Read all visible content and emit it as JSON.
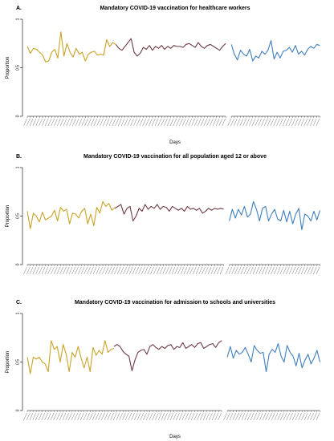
{
  "chart_data": [
    {
      "type": "line",
      "panel_label": "A.",
      "title": "Mandatory COVID-19 vaccination for healthcare workers",
      "xlabel": "Days",
      "ylabel": "Proportion",
      "ylim": [
        0,
        1
      ],
      "yticks": [
        "0",
        "0.5",
        "1"
      ],
      "grid": false,
      "colors": {
        "phase1": "#C9A227",
        "phase2": "#6E3B45",
        "phase3": "#3F7FBF"
      },
      "series": [
        {
          "values": [
            0.72,
            0.65,
            0.7,
            0.69,
            0.66,
            0.63,
            0.56,
            0.57,
            0.66,
            0.69,
            0.6,
            0.87,
            0.62,
            0.75,
            0.66,
            0.61,
            0.7,
            0.64,
            0.66,
            0.57,
            0.64,
            0.66,
            0.67,
            0.63,
            0.64,
            0.63,
            0.79,
            0.72,
            0.76,
            0.74
          ]
        },
        {
          "values": [
            0.74,
            0.7,
            0.68,
            0.72,
            0.76,
            0.8,
            0.66,
            0.62,
            0.65,
            0.71,
            0.69,
            0.73,
            0.68,
            0.72,
            0.7,
            0.73,
            0.69,
            0.72,
            0.7,
            0.73,
            0.72,
            0.72,
            0.71,
            0.74,
            0.75,
            0.73,
            0.71,
            0.76,
            0.72,
            0.7,
            0.73,
            0.74,
            0.72,
            0.7,
            0.68,
            0.72,
            0.75
          ]
        },
        {
          "values": [
            0.74,
            0.64,
            0.58,
            0.68,
            0.64,
            0.62,
            0.69,
            0.57,
            0.62,
            0.6,
            0.67,
            0.64,
            0.68,
            0.78,
            0.59,
            0.66,
            0.6,
            0.67,
            0.68,
            0.71,
            0.66,
            0.73,
            0.64,
            0.67,
            0.63,
            0.69,
            0.72,
            0.7,
            0.74,
            0.73
          ]
        }
      ]
    },
    {
      "type": "line",
      "panel_label": "B.",
      "title": "Mandatory COVID-19 vaccination for all population aged 12 or above",
      "xlabel": "",
      "ylabel": "Proportion",
      "ylim": [
        0,
        1
      ],
      "yticks": [
        "0",
        "0.5",
        "1"
      ],
      "grid": false,
      "colors": {
        "phase1": "#C9A227",
        "phase2": "#6E3B45",
        "phase3": "#3F7FBF"
      },
      "series": [
        {
          "values": [
            0.55,
            0.37,
            0.53,
            0.5,
            0.44,
            0.54,
            0.46,
            0.48,
            0.5,
            0.56,
            0.45,
            0.59,
            0.55,
            0.57,
            0.42,
            0.53,
            0.52,
            0.48,
            0.55,
            0.58,
            0.42,
            0.52,
            0.4,
            0.59,
            0.53,
            0.65,
            0.6,
            0.63,
            0.56,
            0.59
          ]
        },
        {
          "values": [
            0.58,
            0.6,
            0.62,
            0.52,
            0.58,
            0.6,
            0.45,
            0.5,
            0.58,
            0.55,
            0.62,
            0.57,
            0.6,
            0.58,
            0.62,
            0.57,
            0.6,
            0.59,
            0.55,
            0.6,
            0.58,
            0.56,
            0.58,
            0.55,
            0.6,
            0.57,
            0.58,
            0.56,
            0.58,
            0.53,
            0.55,
            0.58,
            0.56,
            0.58,
            0.57,
            0.58,
            0.57
          ]
        },
        {
          "values": [
            0.45,
            0.57,
            0.48,
            0.57,
            0.51,
            0.6,
            0.49,
            0.52,
            0.65,
            0.57,
            0.45,
            0.58,
            0.6,
            0.45,
            0.52,
            0.57,
            0.47,
            0.45,
            0.56,
            0.44,
            0.55,
            0.42,
            0.52,
            0.58,
            0.36,
            0.52,
            0.5,
            0.45,
            0.55,
            0.46,
            0.56
          ]
        }
      ]
    },
    {
      "type": "line",
      "panel_label": "C.",
      "title": "Mandatory COVID-19 vaccination for admission to schools and universities",
      "xlabel": "Days",
      "ylabel": "Proportion",
      "ylim": [
        0,
        1
      ],
      "yticks": [
        "0",
        "0.5",
        "1"
      ],
      "grid": false,
      "colors": {
        "phase1": "#C9A227",
        "phase2": "#6E3B45",
        "phase3": "#3F7FBF"
      },
      "series": [
        {
          "values": [
            0.55,
            0.38,
            0.55,
            0.53,
            0.55,
            0.5,
            0.48,
            0.4,
            0.72,
            0.63,
            0.66,
            0.5,
            0.68,
            0.58,
            0.4,
            0.6,
            0.55,
            0.66,
            0.54,
            0.44,
            0.55,
            0.4,
            0.65,
            0.57,
            0.62,
            0.58,
            0.72,
            0.6,
            0.63,
            0.64
          ]
        },
        {
          "values": [
            0.66,
            0.68,
            0.66,
            0.61,
            0.58,
            0.56,
            0.41,
            0.52,
            0.6,
            0.62,
            0.63,
            0.58,
            0.66,
            0.68,
            0.65,
            0.63,
            0.66,
            0.64,
            0.67,
            0.68,
            0.63,
            0.66,
            0.65,
            0.7,
            0.64,
            0.66,
            0.68,
            0.65,
            0.69,
            0.7,
            0.64,
            0.66,
            0.68,
            0.69,
            0.65,
            0.7,
            0.72
          ]
        },
        {
          "values": [
            0.55,
            0.66,
            0.54,
            0.62,
            0.58,
            0.6,
            0.65,
            0.58,
            0.5,
            0.67,
            0.62,
            0.59,
            0.6,
            0.4,
            0.58,
            0.63,
            0.6,
            0.69,
            0.56,
            0.5,
            0.67,
            0.6,
            0.56,
            0.46,
            0.59,
            0.44,
            0.52,
            0.58,
            0.48,
            0.54,
            0.62,
            0.5
          ]
        }
      ]
    }
  ]
}
